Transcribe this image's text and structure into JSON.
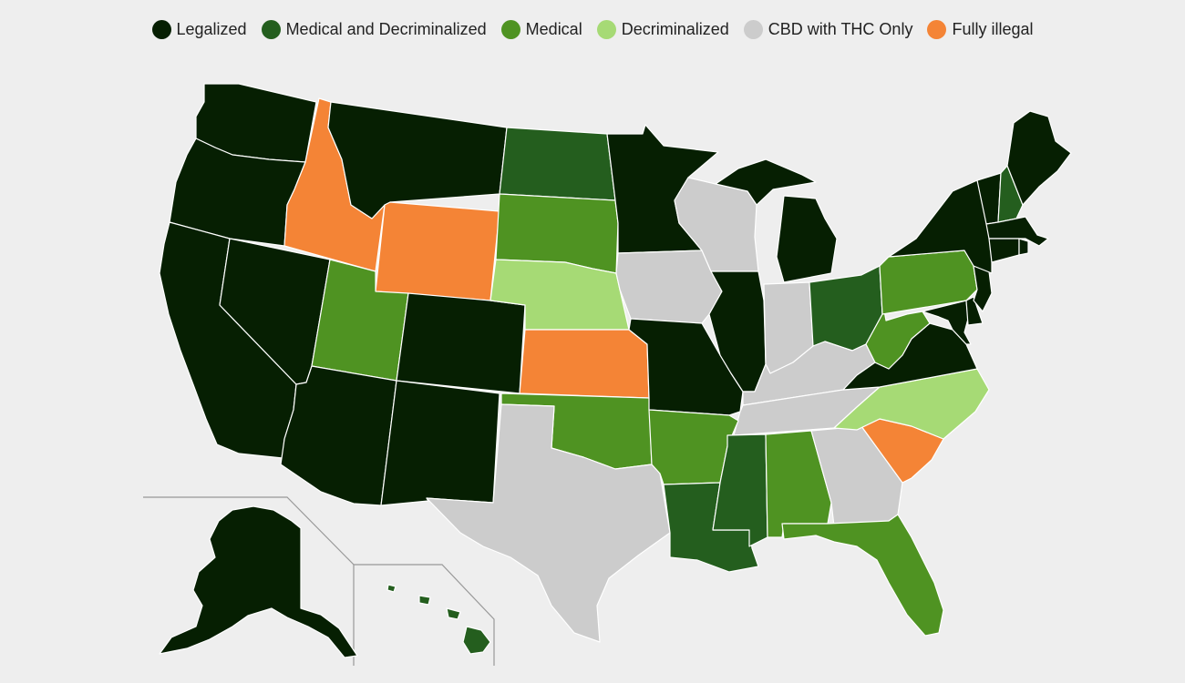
{
  "colors": {
    "legalized": "#061f02",
    "med_decrim": "#245e1e",
    "medical": "#4f9322",
    "decriminalized": "#a6da75",
    "cbd": "#cccccc",
    "illegal": "#f48436"
  },
  "legend": [
    {
      "key": "legalized",
      "label": "Legalized"
    },
    {
      "key": "med_decrim",
      "label": "Medical and Decriminalized"
    },
    {
      "key": "medical",
      "label": "Medical"
    },
    {
      "key": "decriminalized",
      "label": "Decriminalized"
    },
    {
      "key": "cbd",
      "label": "CBD with THC Only"
    },
    {
      "key": "illegal",
      "label": "Fully illegal"
    }
  ],
  "states": {
    "WA": "legalized",
    "OR": "legalized",
    "CA": "legalized",
    "NV": "legalized",
    "ID": "illegal",
    "MT": "legalized",
    "WY": "illegal",
    "UT": "medical",
    "AZ": "legalized",
    "CO": "legalized",
    "NM": "legalized",
    "ND": "med_decrim",
    "SD": "medical",
    "NE": "decriminalized",
    "KS": "illegal",
    "OK": "medical",
    "TX": "cbd",
    "MN": "legalized",
    "IA": "cbd",
    "MO": "legalized",
    "AR": "medical",
    "LA": "med_decrim",
    "WI": "cbd",
    "IL": "legalized",
    "MI": "legalized",
    "IN": "cbd",
    "OH": "med_decrim",
    "KY": "cbd",
    "TN": "cbd",
    "MS": "med_decrim",
    "AL": "medical",
    "GA": "cbd",
    "FL": "medical",
    "SC": "illegal",
    "NC": "decriminalized",
    "VA": "legalized",
    "WV": "medical",
    "PA": "medical",
    "NY": "legalized",
    "VT": "legalized",
    "NH": "med_decrim",
    "ME": "legalized",
    "MA": "legalized",
    "CT": "legalized",
    "RI": "legalized",
    "NJ": "legalized",
    "DE": "legalized",
    "MD": "legalized",
    "AK": "legalized",
    "HI": "med_decrim"
  }
}
